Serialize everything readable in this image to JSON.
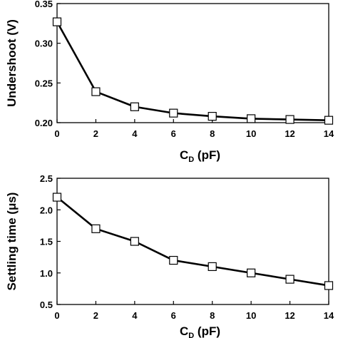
{
  "chart_data": [
    {
      "type": "line",
      "title": "",
      "xlabel_main": "C",
      "xlabel_sub": "D",
      "xlabel_unit": " (pF)",
      "ylabel": "Undershoot (V)",
      "x": [
        0,
        2,
        4,
        6,
        8,
        10,
        12,
        14
      ],
      "series": [
        {
          "values": [
            0.327,
            0.239,
            0.22,
            0.212,
            0.208,
            0.205,
            0.204,
            0.203
          ]
        }
      ],
      "xlim": [
        0,
        14
      ],
      "ylim": [
        0.2,
        0.35
      ],
      "xticks": [
        0,
        2,
        4,
        6,
        8,
        10,
        12,
        14
      ],
      "yticks": [
        0.2,
        0.25,
        0.3,
        0.35
      ],
      "xticklabels": [
        "0",
        "2",
        "4",
        "6",
        "8",
        "10",
        "12",
        "14"
      ],
      "yticklabels": [
        "0.20",
        "0.25",
        "0.30",
        "0.35"
      ],
      "grid": false,
      "legend": "none",
      "marker": "open-square",
      "line_color": "#000000"
    },
    {
      "type": "line",
      "title": "",
      "xlabel_main": "C",
      "xlabel_sub": "D",
      "xlabel_unit": " (pF)",
      "ylabel": "Settling time (μs)",
      "x": [
        0,
        2,
        4,
        6,
        8,
        10,
        12,
        14
      ],
      "series": [
        {
          "values": [
            2.2,
            1.7,
            1.5,
            1.2,
            1.1,
            1.0,
            0.9,
            0.8
          ]
        }
      ],
      "xlim": [
        0,
        14
      ],
      "ylim": [
        0.5,
        2.5
      ],
      "xticks": [
        0,
        2,
        4,
        6,
        8,
        10,
        12,
        14
      ],
      "yticks": [
        0.5,
        1.0,
        1.5,
        2.0,
        2.5
      ],
      "xticklabels": [
        "0",
        "2",
        "4",
        "6",
        "8",
        "10",
        "12",
        "14"
      ],
      "yticklabels": [
        "0.5",
        "1.0",
        "1.5",
        "2.0",
        "2.5"
      ],
      "grid": false,
      "legend": "none",
      "marker": "open-square",
      "line_color": "#000000"
    }
  ]
}
